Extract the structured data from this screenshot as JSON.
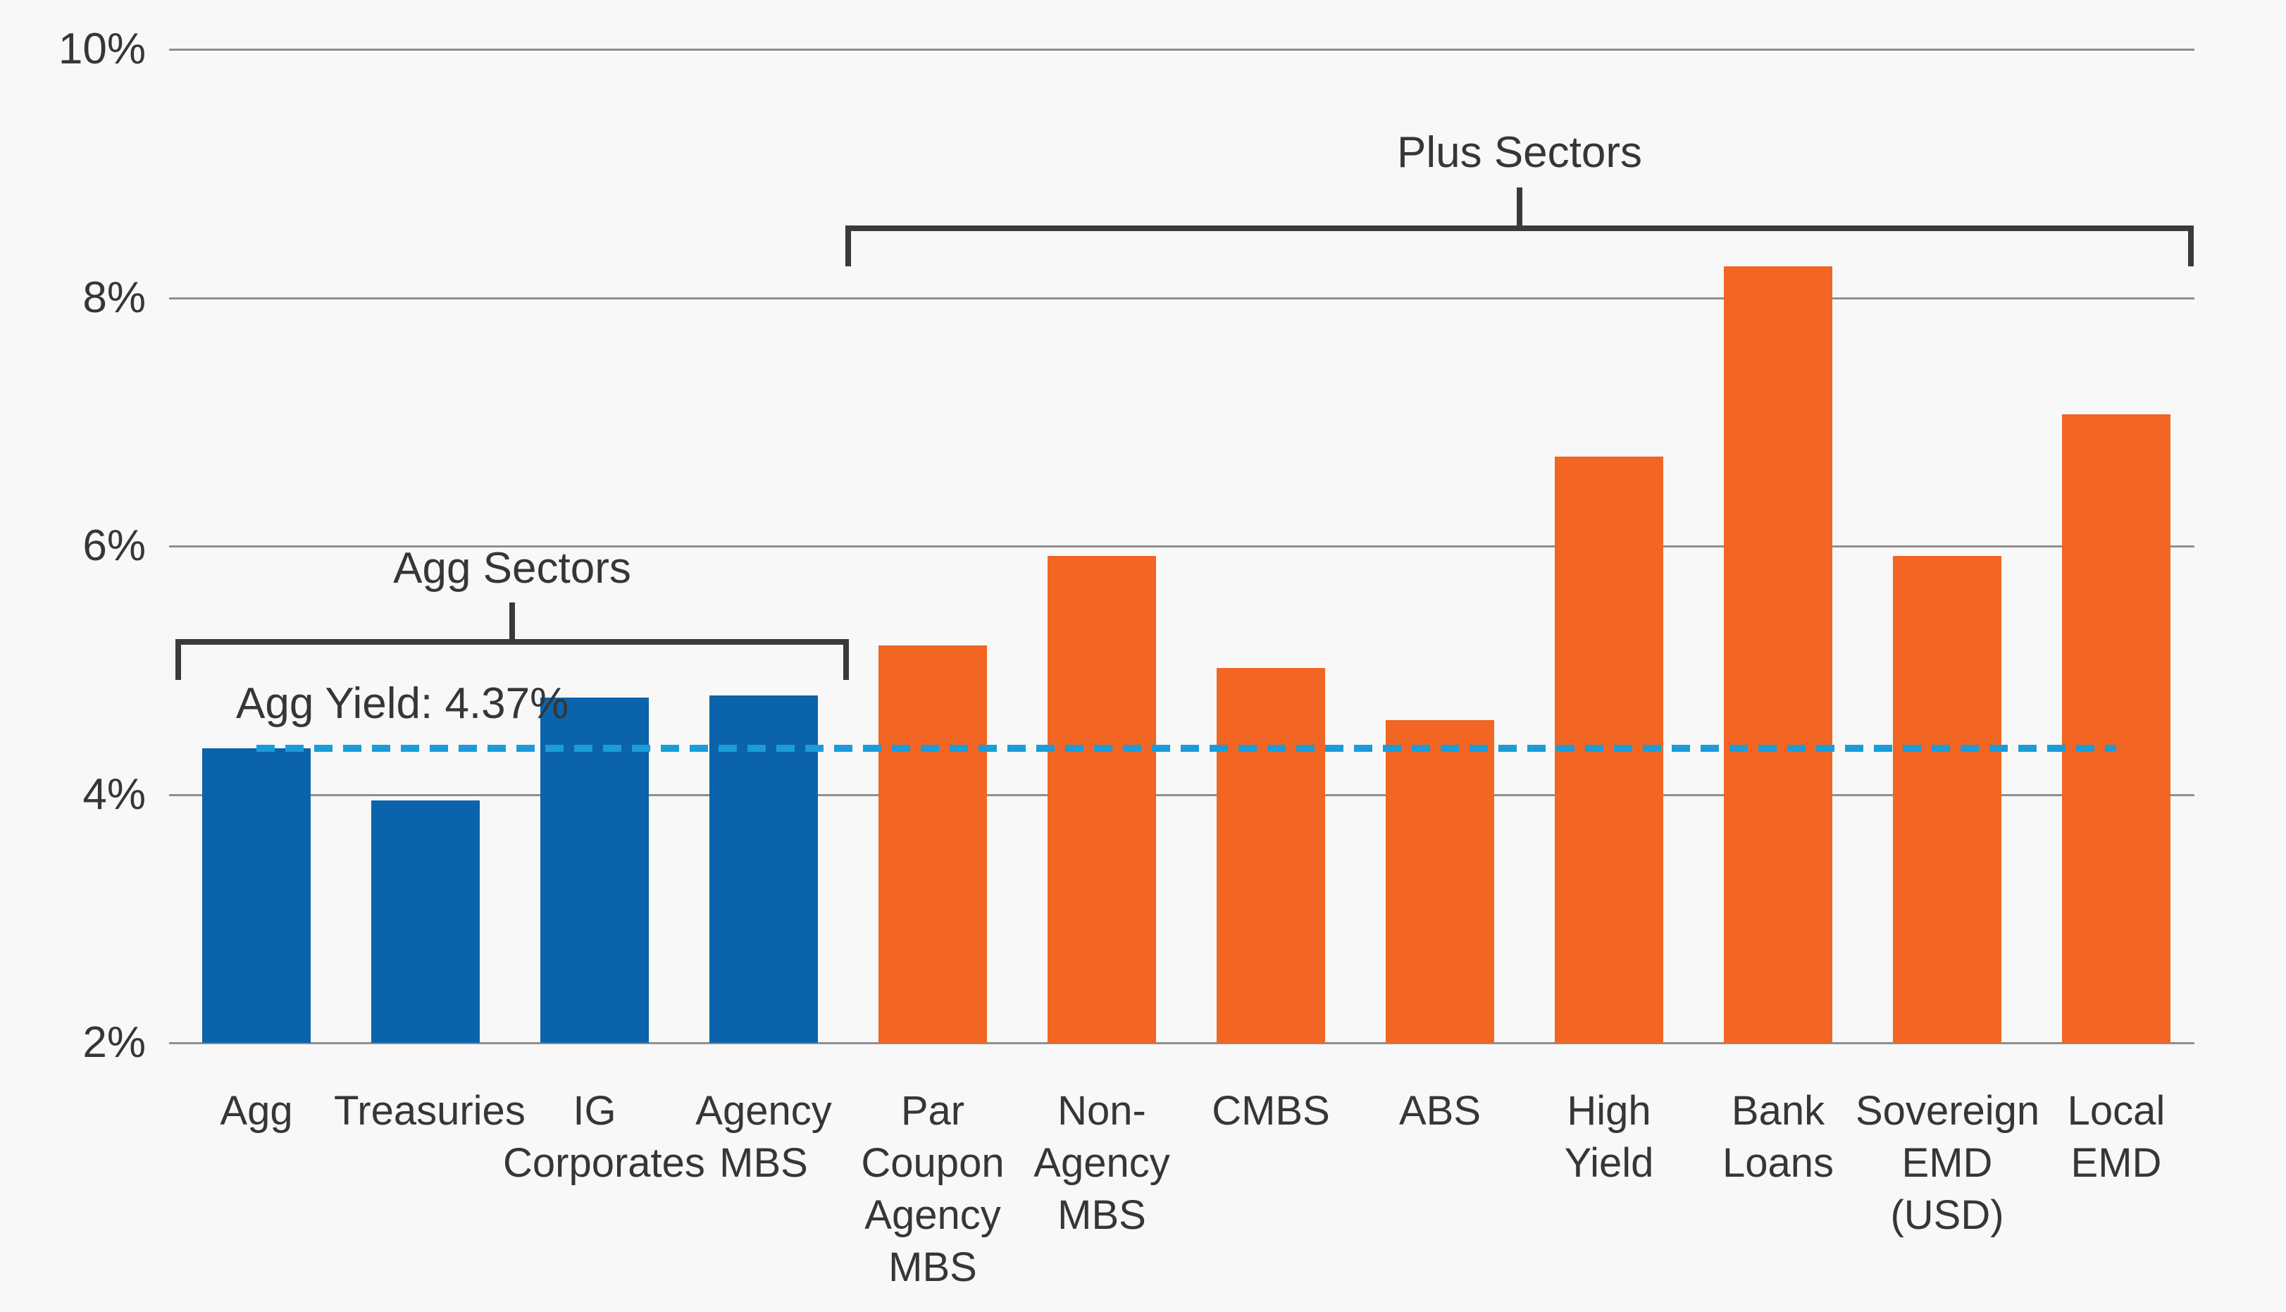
{
  "background_color": "#f8f8f8",
  "text_color": "#363636",
  "gridline_color": "#8f8f8f",
  "chart_data": {
    "type": "bar",
    "title": "",
    "xlabel": "",
    "ylabel": "",
    "grid": true,
    "legend": "none",
    "y_axis": {
      "min": 2,
      "max": 10,
      "unit": "%",
      "ticks": [
        {
          "label": "10%",
          "value": 10
        },
        {
          "label": "8%",
          "value": 8
        },
        {
          "label": "6%",
          "value": 6
        },
        {
          "label": "4%",
          "value": 4
        },
        {
          "label": "2%",
          "value": 2
        }
      ]
    },
    "categories": [
      "Agg",
      "Treasuries",
      "IG\nCorporates",
      "Agency\nMBS",
      "Par\nCoupon\nAgency\nMBS",
      "Non-\nAgency\nMBS",
      "CMBS",
      "ABS",
      "High\nYield",
      "Bank\nLoans",
      "Sovereign\nEMD\n(USD)",
      "Local\nEMD"
    ],
    "values": [
      4.37,
      3.95,
      4.78,
      4.8,
      5.2,
      5.92,
      5.02,
      4.6,
      6.72,
      8.25,
      5.92,
      7.06
    ],
    "bars": [
      {
        "label": "Agg",
        "value": 4.37,
        "group": "agg"
      },
      {
        "label": "Treasuries",
        "value": 3.95,
        "group": "agg"
      },
      {
        "label": "IG\nCorporates",
        "value": 4.78,
        "group": "agg"
      },
      {
        "label": "Agency\nMBS",
        "value": 4.8,
        "group": "agg"
      },
      {
        "label": "Par\nCoupon\nAgency\nMBS",
        "value": 5.2,
        "group": "plus"
      },
      {
        "label": "Non-\nAgency\nMBS",
        "value": 5.92,
        "group": "plus"
      },
      {
        "label": "CMBS",
        "value": 5.02,
        "group": "plus"
      },
      {
        "label": "ABS",
        "value": 4.6,
        "group": "plus"
      },
      {
        "label": "High\nYield",
        "value": 6.72,
        "group": "plus"
      },
      {
        "label": "Bank\nLoans",
        "value": 8.25,
        "group": "plus"
      },
      {
        "label": "Sovereign\nEMD\n(USD)",
        "value": 5.92,
        "group": "plus"
      },
      {
        "label": "Local\nEMD",
        "value": 7.06,
        "group": "plus"
      }
    ],
    "groups": {
      "agg": {
        "name": "Agg Sectors",
        "color": "#0a63ab"
      },
      "plus": {
        "name": "Plus Sectors",
        "color": "#f26522"
      }
    },
    "reference_line": {
      "label": "Agg Yield: 4.37%",
      "value": 4.37,
      "style": "dashed",
      "color": "#1b9cd8"
    }
  }
}
